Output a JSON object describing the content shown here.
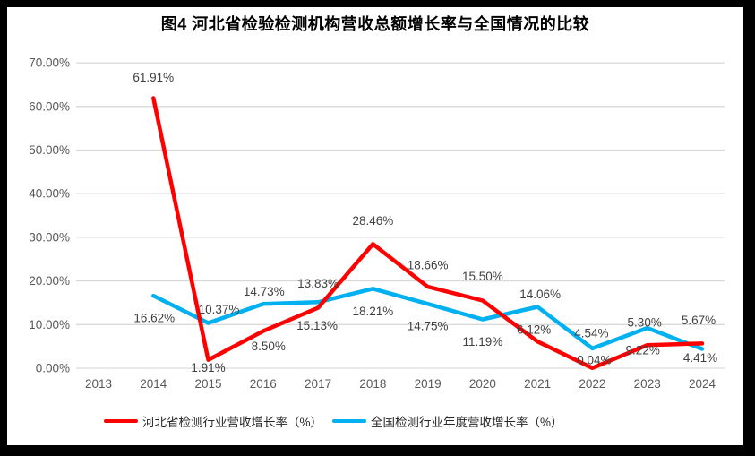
{
  "chart_data": {
    "type": "line",
    "title": "图4 河北省检验检测机构营收总额增长率与全国情况的比较",
    "categories": [
      "2013",
      "2014",
      "2015",
      "2016",
      "2017",
      "2018",
      "2019",
      "2020",
      "2021",
      "2022",
      "2023",
      "2024"
    ],
    "yticks": [
      "0.00%",
      "10.00%",
      "20.00%",
      "30.00%",
      "40.00%",
      "50.00%",
      "60.00%",
      "70.00%"
    ],
    "ylim": [
      0,
      70
    ],
    "grid": true,
    "legend_position": "bottom",
    "gridline_color": "#d9d9d9",
    "tick_color": "#595959",
    "label_color": "#404040",
    "series": [
      {
        "name": "河北省检测行业营收增长率（%）",
        "color": "#ff0000",
        "start_category": "2014",
        "values": [
          61.91,
          1.91,
          8.5,
          13.83,
          28.46,
          18.66,
          15.5,
          6.12,
          0.04,
          5.3,
          5.67
        ],
        "labels": [
          "61.91%",
          "1.91%",
          "8.50%",
          "13.83%",
          "28.46%",
          "18.66%",
          "15.50%",
          "6.12%",
          "0.04%",
          "5.30%",
          "5.67%"
        ],
        "label_offsets": [
          [
            0,
            -23
          ],
          [
            0,
            9
          ],
          [
            6,
            17
          ],
          [
            0,
            -27
          ],
          [
            0,
            -26
          ],
          [
            0,
            -24
          ],
          [
            0,
            -27
          ],
          [
            -4,
            -13
          ],
          [
            2,
            -9
          ],
          [
            -3,
            -25
          ],
          [
            -4,
            -26
          ]
        ]
      },
      {
        "name": "全国检测行业年度营收增长率（%）",
        "color": "#00b0f0",
        "start_category": "2014",
        "values": [
          16.62,
          10.37,
          14.73,
          15.13,
          18.21,
          14.75,
          11.19,
          14.06,
          4.54,
          9.22,
          4.41
        ],
        "labels": [
          "16.62%",
          "10.37%",
          "14.73%",
          "15.13%",
          "18.21%",
          "14.75%",
          "11.19%",
          "14.06%",
          "4.54%",
          "9.22%",
          "4.41%"
        ],
        "label_offsets": [
          [
            1,
            25
          ],
          [
            12,
            -15
          ],
          [
            1,
            -14
          ],
          [
            -1,
            26
          ],
          [
            0,
            25
          ],
          [
            0,
            25
          ],
          [
            0,
            25
          ],
          [
            3,
            -14
          ],
          [
            -1,
            -17
          ],
          [
            -5,
            25
          ],
          [
            -2,
            10
          ]
        ]
      }
    ]
  }
}
